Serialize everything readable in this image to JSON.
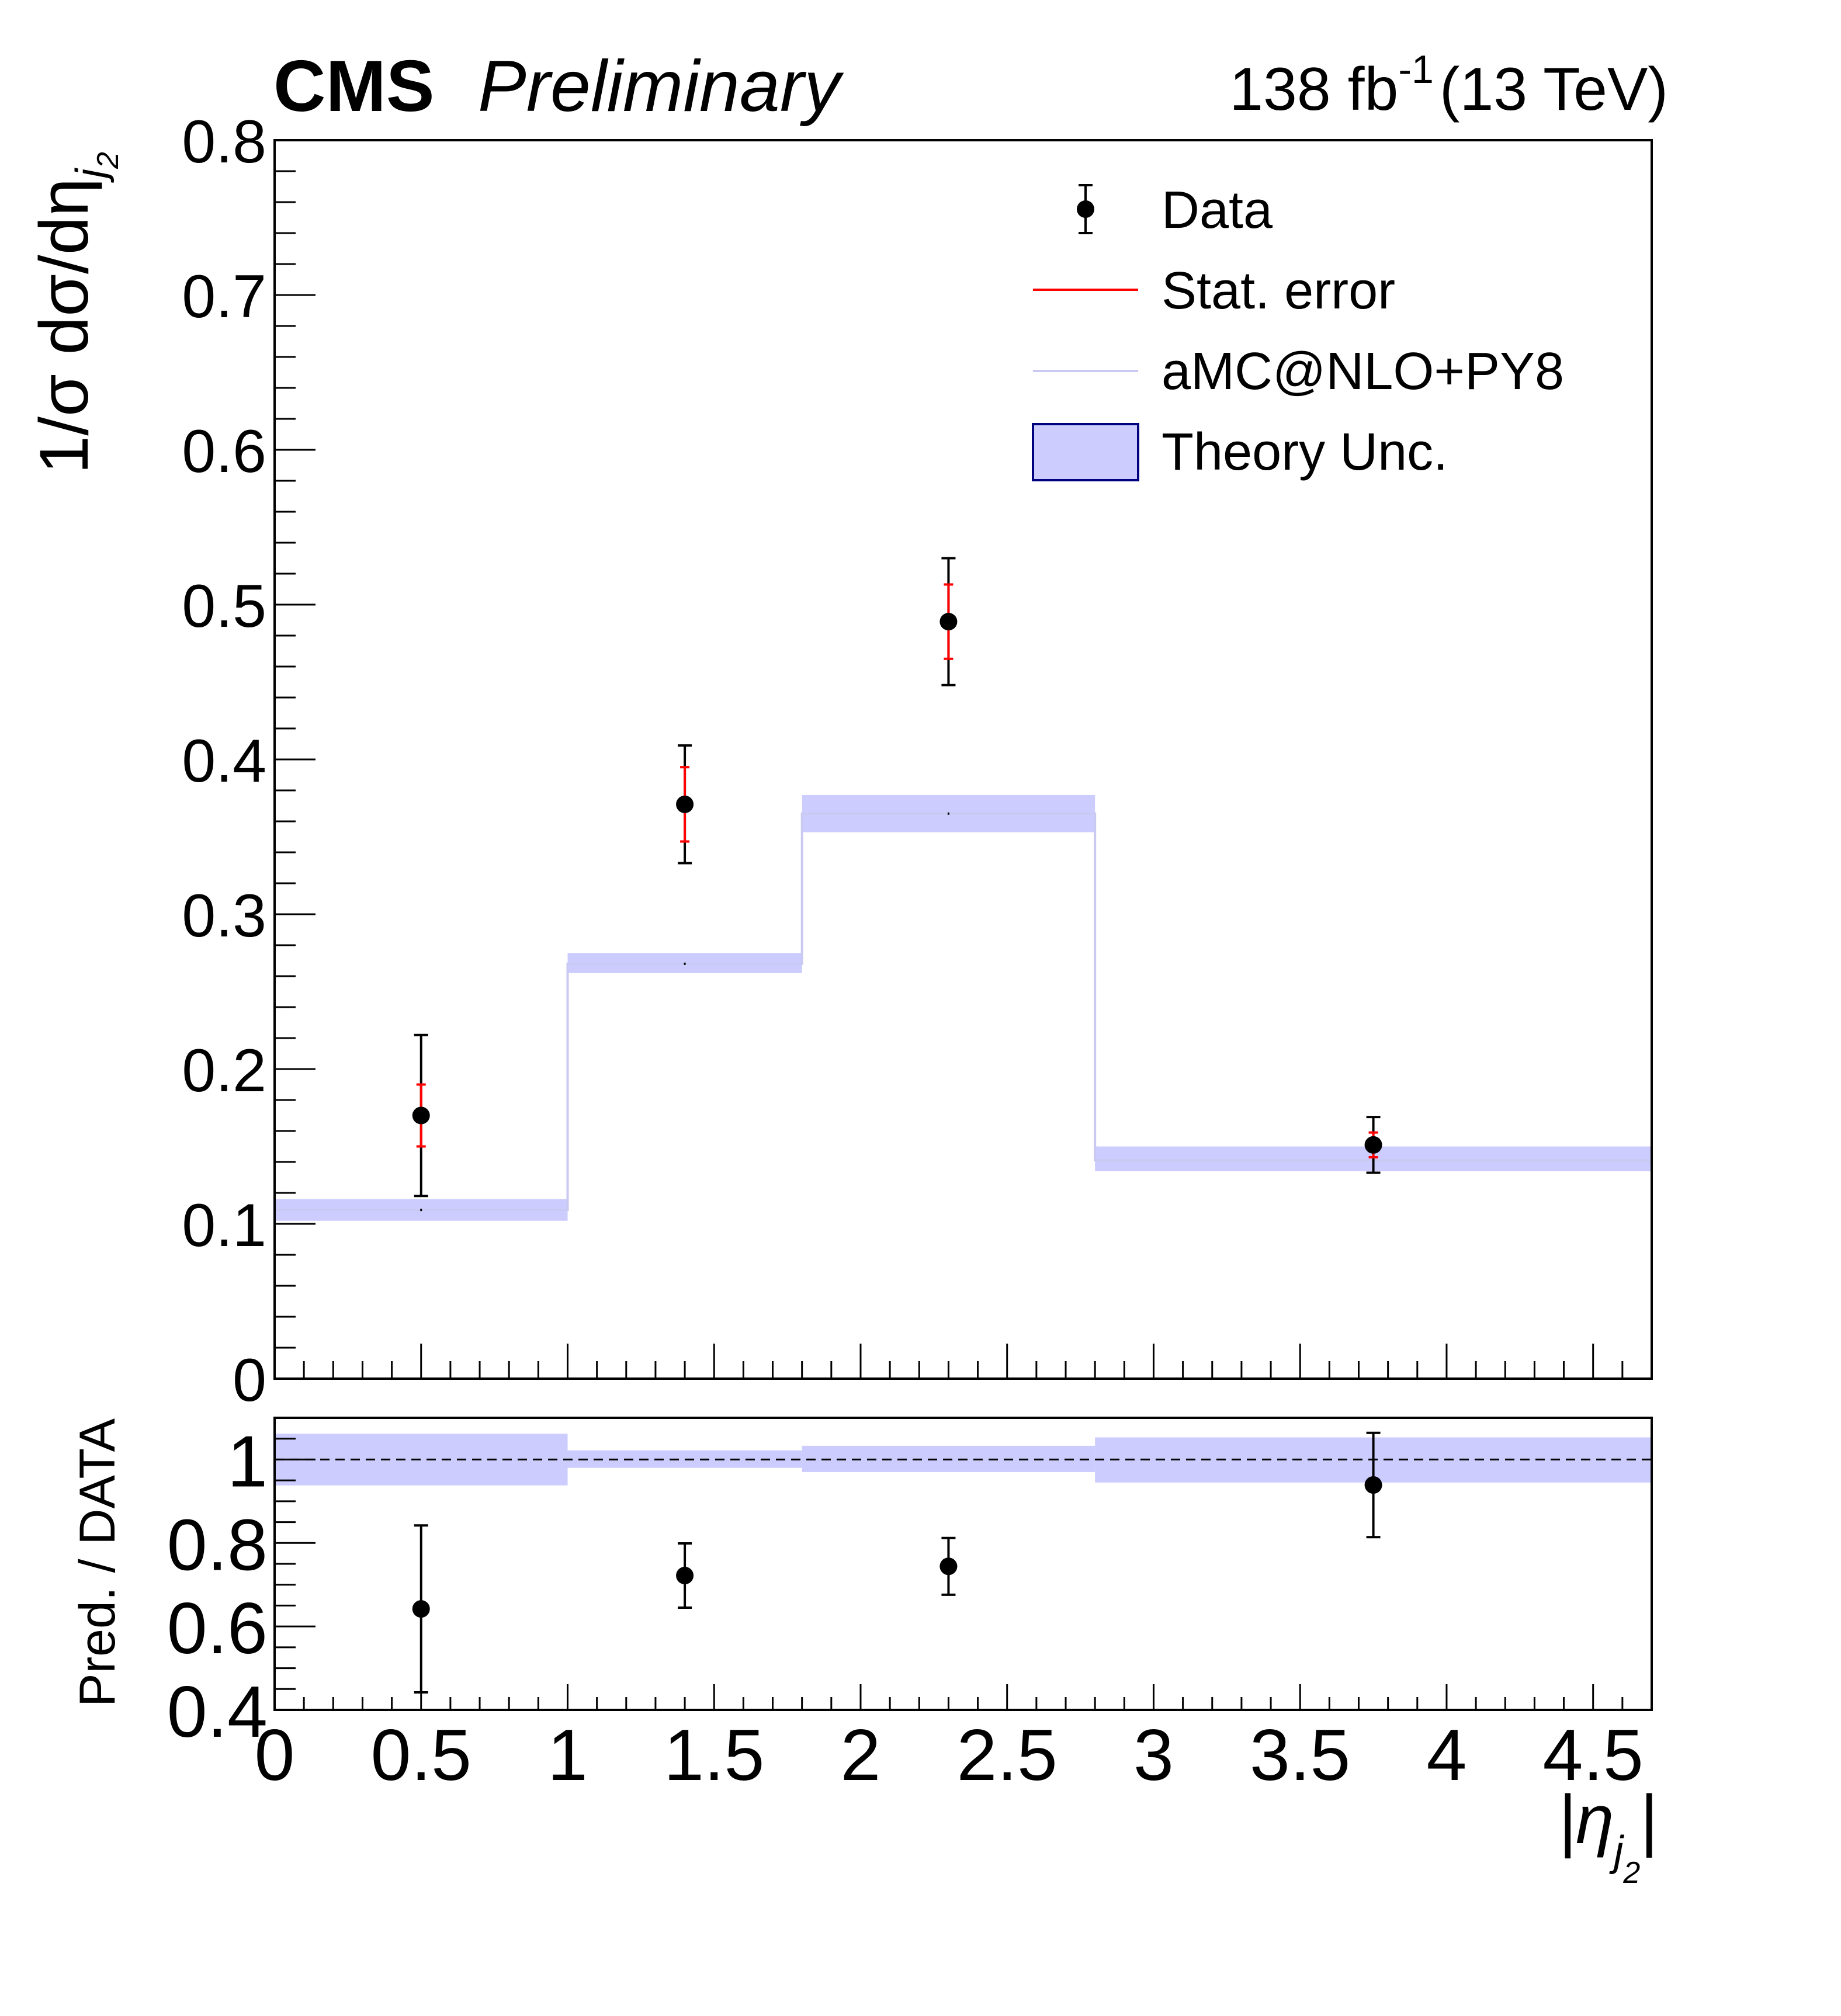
{
  "header": {
    "brand": "CMS",
    "status": "Preliminary",
    "lumi_value": "138 fb",
    "lumi_exp": "-1",
    "energy": "(13 TeV)"
  },
  "colors": {
    "data": "#000000",
    "stat_error": "#ff0000",
    "prediction_line": "#c9c9f2",
    "theory_band": "#ccccff",
    "theory_band_border": "#00007f",
    "reference_line": "#000000"
  },
  "legend": {
    "placement": "top-right",
    "entries": [
      {
        "label": "Data",
        "marker": "point-errorbar"
      },
      {
        "label": "Stat. error",
        "marker": "red-line"
      },
      {
        "label": "aMC@NLO+PY8",
        "marker": "line"
      },
      {
        "label": "Theory Unc.",
        "marker": "box"
      }
    ]
  },
  "chart_data": [
    {
      "type": "histogram-with-points",
      "ylabel": "1/σ dσ/dη",
      "ylabel_sub": "j",
      "ylabel_subsub": "2",
      "xlim": [
        0,
        4.7
      ],
      "ylim": [
        0,
        0.8
      ],
      "yticks": [
        0,
        0.1,
        0.2,
        0.3,
        0.4,
        0.5,
        0.6,
        0.7,
        0.8
      ],
      "ytick_labels": [
        "0",
        "0.1",
        "0.2",
        "0.3",
        "0.4",
        "0.5",
        "0.6",
        "0.7",
        "0.8"
      ],
      "series": [
        {
          "name": "Data",
          "x": [
            0.5,
            1.4,
            2.3,
            3.75
          ],
          "y": [
            0.17,
            0.371,
            0.489,
            0.151
          ],
          "total_err": [
            0.052,
            0.038,
            0.041,
            0.018
          ],
          "stat_err": [
            0.02,
            0.024,
            0.024,
            0.008
          ]
        },
        {
          "name": "aMC@NLO+PY8",
          "bin_edges": [
            0,
            1.0,
            1.8,
            2.8,
            4.7
          ],
          "values": [
            0.109,
            0.268,
            0.365,
            0.141
          ],
          "unc_low": [
            0.102,
            0.262,
            0.353,
            0.134
          ],
          "unc_high": [
            0.116,
            0.275,
            0.377,
            0.15
          ]
        }
      ]
    },
    {
      "type": "ratio",
      "xlabel": "|η",
      "xlabel_sub": "j",
      "xlabel_subsub": "2",
      "xlabel_close": "|",
      "ylabel": "Pred. / DATA",
      "xlim": [
        0,
        4.7
      ],
      "ylim": [
        0.4,
        1.1
      ],
      "yticks": [
        0.4,
        0.6,
        0.8,
        1
      ],
      "ytick_labels": [
        "0.4",
        "0.6",
        "0.8",
        "1"
      ],
      "xticks": [
        0,
        0.5,
        1,
        1.5,
        2,
        2.5,
        3,
        3.5,
        4,
        4.5
      ],
      "xtick_labels": [
        "0",
        "0.5",
        "1",
        "1.5",
        "2",
        "2.5",
        "3",
        "3.5",
        "4",
        "4.5"
      ],
      "reference": 1.0,
      "series": [
        {
          "name": "Pred. / DATA",
          "x": [
            0.5,
            1.4,
            2.3,
            3.75
          ],
          "y": [
            0.642,
            0.722,
            0.744,
            0.939
          ],
          "err_low": [
            0.2,
            0.077,
            0.068,
            0.125
          ],
          "err_high": [
            0.2,
            0.077,
            0.068,
            0.125
          ]
        }
      ],
      "band": {
        "bin_edges": [
          0,
          1.0,
          1.8,
          2.8,
          4.7
        ],
        "low": [
          0.938,
          0.98,
          0.97,
          0.945
        ],
        "high": [
          1.062,
          1.022,
          1.033,
          1.053
        ]
      }
    }
  ]
}
